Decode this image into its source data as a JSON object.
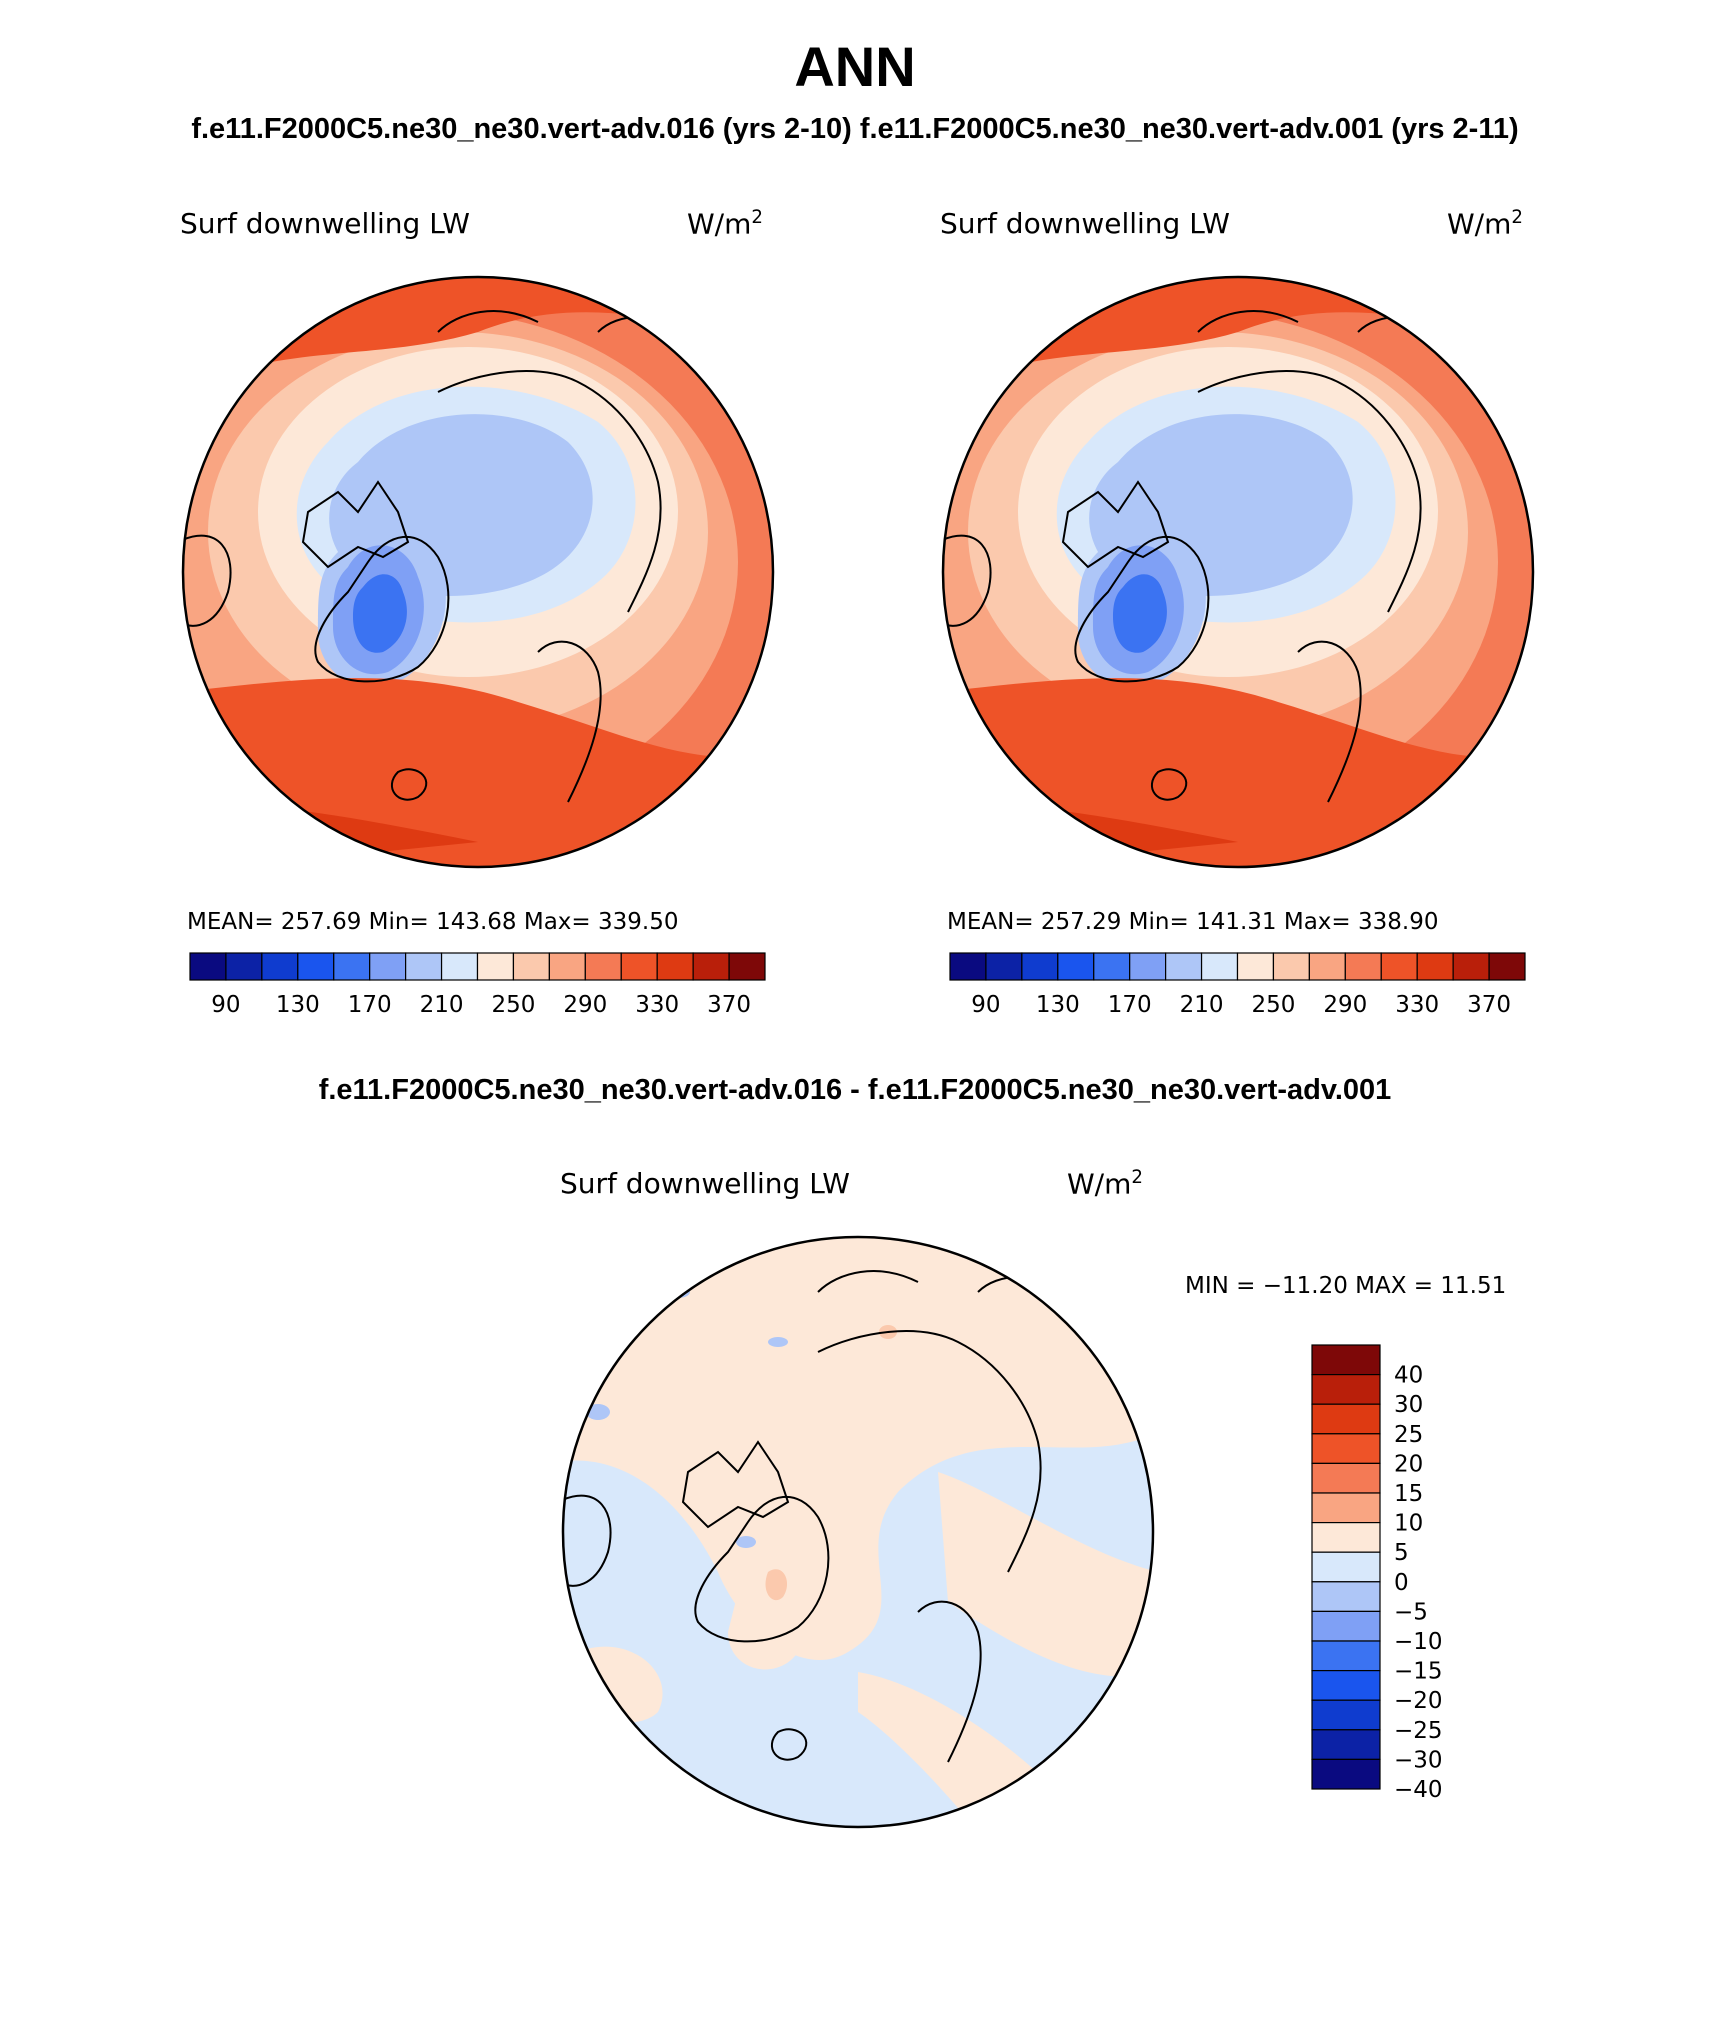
{
  "title": "ANN",
  "runs_subtitle": "f.e11.F2000C5.ne30_ne30.vert-adv.016 (yrs 2-10) f.e11.F2000C5.ne30_ne30.vert-adv.001 (yrs 2-11)",
  "diff_subtitle": "f.e11.F2000C5.ne30_ne30.vert-adv.016 - f.e11.F2000C5.ne30_ne30.vert-adv.001",
  "panels": [
    {
      "variable": "Surf downwelling LW",
      "units_base": "W/m",
      "units_exp": "2",
      "stats": "MEAN= 257.69   Min= 143.68   Max= 339.50"
    },
    {
      "variable": "Surf downwelling LW",
      "units_base": "W/m",
      "units_exp": "2",
      "stats": "MEAN= 257.29   Min= 141.31   Max= 338.90"
    }
  ],
  "diff_panel": {
    "variable": "Surf downwelling LW",
    "units_base": "W/m",
    "units_exp": "2",
    "minmax": "MIN = −11.20  MAX =   11.51"
  },
  "colorbar_main": {
    "colors": [
      "#0a0a80",
      "#0c22a6",
      "#0f3ccf",
      "#1a55ee",
      "#3b73f2",
      "#7fa0f5",
      "#aec6f7",
      "#d8e8fb",
      "#fde8d8",
      "#fbc9ad",
      "#f9a582",
      "#f47a55",
      "#ee5328",
      "#de3a12",
      "#b91f0a",
      "#7e0808"
    ],
    "labels": [
      "90",
      "130",
      "170",
      "210",
      "250",
      "290",
      "330",
      "370"
    ]
  },
  "colorbar_diff": {
    "colors": [
      "#7e0808",
      "#b91f0a",
      "#de3a12",
      "#ee5328",
      "#f47a55",
      "#f9a582",
      "#fde8d8",
      "#d8e8fb",
      "#aec6f7",
      "#7fa0f5",
      "#3b73f2",
      "#1a55ee",
      "#0f3ccf",
      "#0c22a6",
      "#0a0a80"
    ],
    "labels": [
      "40",
      "30",
      "25",
      "20",
      "15",
      "10",
      "5",
      "0",
      "−5",
      "−10",
      "−15",
      "−20",
      "−25",
      "−30",
      "−40"
    ]
  }
}
